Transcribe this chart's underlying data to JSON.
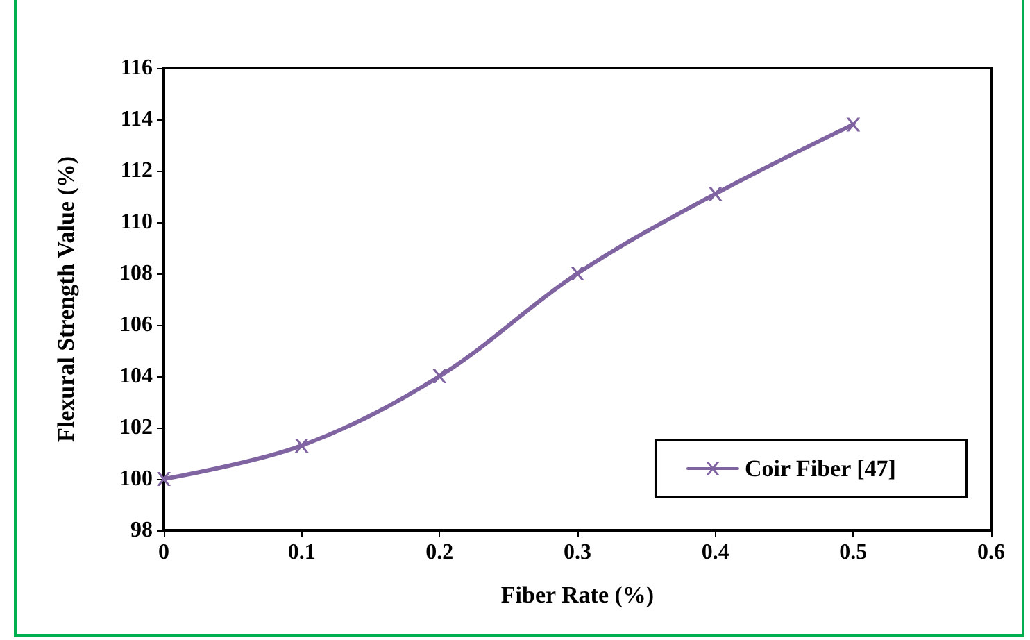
{
  "chart_data": {
    "type": "line",
    "xlabel": "Fiber Rate (%)",
    "ylabel": "Flexural Strength Value (%)",
    "x": [
      0,
      0.1,
      0.2,
      0.3,
      0.4,
      0.5
    ],
    "series": [
      {
        "name": "Coir Fiber [47]",
        "color": "#8064a2",
        "values": [
          100,
          101.3,
          104,
          108,
          111.1,
          113.8
        ]
      }
    ],
    "xlim": [
      0,
      0.6
    ],
    "xticks": [
      0,
      0.1,
      0.2,
      0.3,
      0.4,
      0.5,
      0.6
    ],
    "ylim": [
      98,
      116
    ],
    "yticks": [
      98,
      100,
      102,
      104,
      106,
      108,
      110,
      112,
      114,
      116
    ],
    "grid": false,
    "legend": "bottom right",
    "marker": "cross",
    "line_style": "solid"
  }
}
